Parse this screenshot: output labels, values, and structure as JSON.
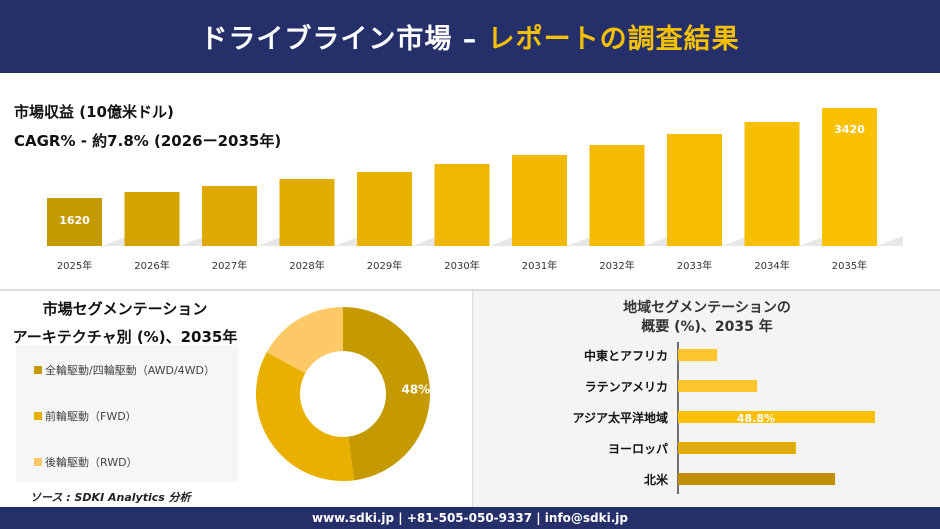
{
  "header": {
    "title_main": "ドライブライン市場 –",
    "title_accent": "レポートの調査結果"
  },
  "revenue": {
    "title": "市場収益 (10億米ドル)",
    "cagr": "CAGR% - 約7.8% (2026ー2035年)"
  },
  "chart_data": [
    {
      "type": "bar",
      "categories": [
        "2025年",
        "2026年",
        "2027年",
        "2028年",
        "2029年",
        "2030年",
        "2031年",
        "2032年",
        "2033年",
        "2034年",
        "2035年"
      ],
      "values": [
        1620,
        1740,
        1860,
        2000,
        2140,
        2300,
        2480,
        2680,
        2900,
        3140,
        3420
      ],
      "data_labels": {
        "0": "1620",
        "10": "3420"
      },
      "colors": [
        "#c39a00",
        "#d4a300",
        "#dca900",
        "#e2ad00",
        "#e9b200",
        "#efb700",
        "#f2b900",
        "#f4bb00",
        "#f6bd00",
        "#f8bf00",
        "#fac100"
      ]
    },
    {
      "type": "pie",
      "donut": true,
      "title": "市場セグメンテーション",
      "subtitle": "アーキテクチャ別 (%)、2035年",
      "labels": [
        "全輪駆動/四輪駆動（AWD/4WD）",
        "前輪駆動（FWD）",
        "後輪駆動（RWD）"
      ],
      "values": [
        48,
        35,
        17
      ],
      "data_labels": [
        "48%",
        "",
        ""
      ],
      "colors": [
        "#c49a00",
        "#e9b000",
        "#fcc966"
      ]
    },
    {
      "type": "bar",
      "orientation": "horizontal",
      "title": "地域セグメンテーションの",
      "subtitle": "概要 (%)、2035 年",
      "categories": [
        "中東とアフリカ",
        "ラテンアメリカ",
        "アジア太平洋地域",
        "ヨーロッパ",
        "北米"
      ],
      "values": [
        9.7,
        19.6,
        48.8,
        29.2,
        38.9
      ],
      "data_labels": [
        "",
        "",
        "48.8%",
        "",
        ""
      ],
      "colors": [
        "#fcc52e",
        "#fcc52e",
        "#fcc000",
        "#e3ab00",
        "#c08e00"
      ]
    }
  ],
  "source": "ソース : SDKI Analytics 分析",
  "footer": "www.sdki.jp | +81-505-050-9337 | info@sdki.jp"
}
